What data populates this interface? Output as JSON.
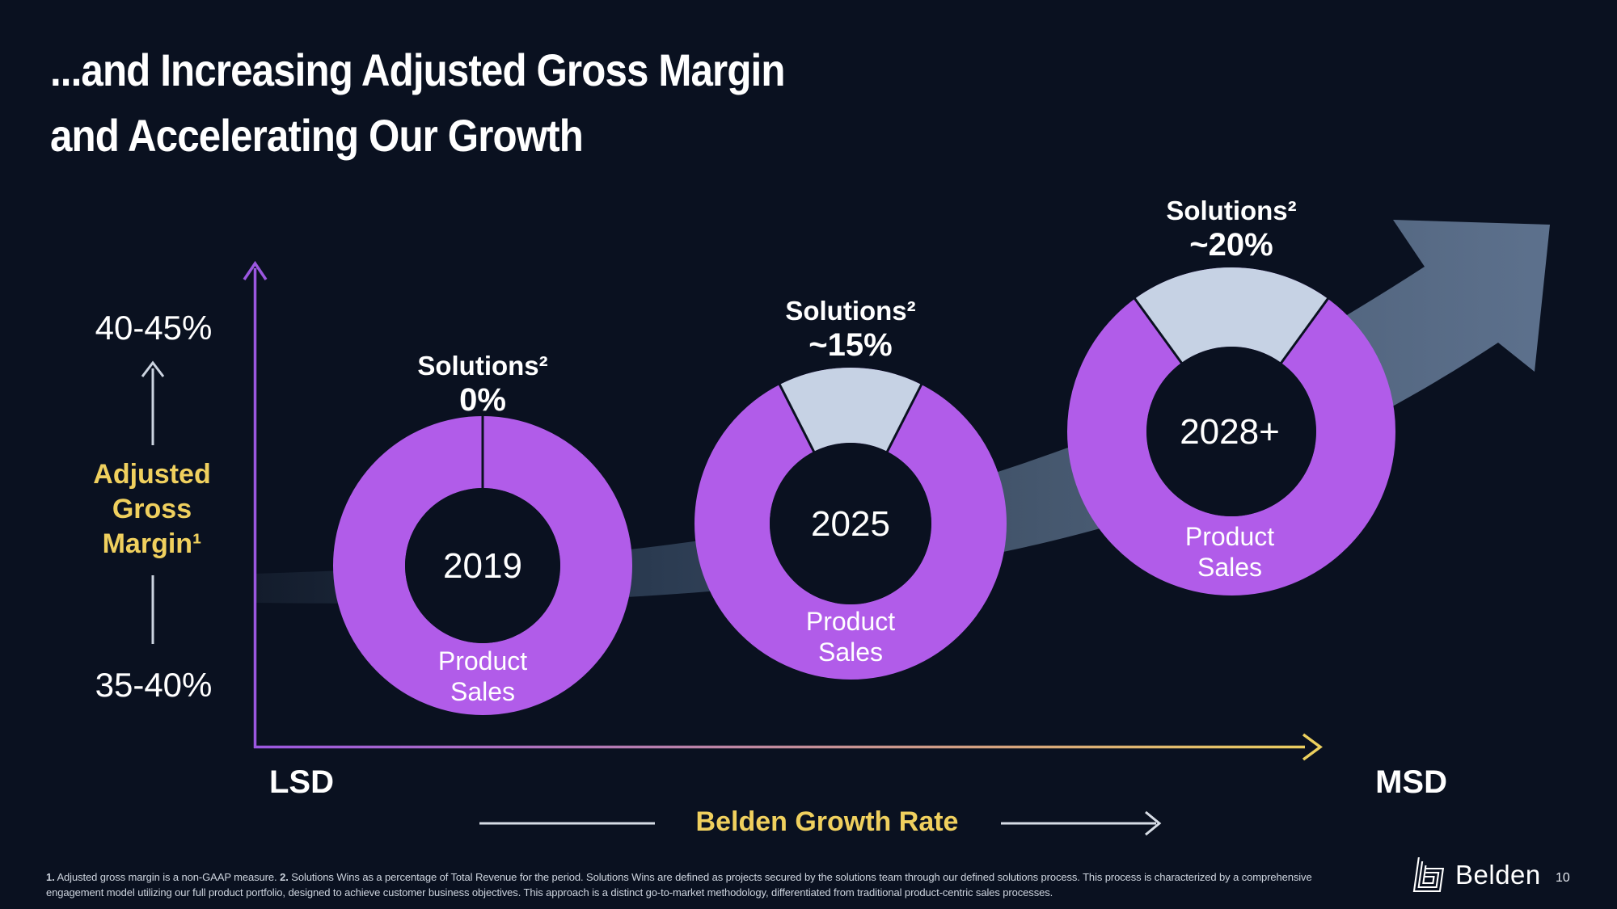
{
  "slide": {
    "title_line1": "...and Increasing Adjusted Gross Margin",
    "title_line2": "and Accelerating Our Growth"
  },
  "theme": {
    "background": "#0a1120",
    "product_purple": "#b15ce9",
    "solutions_blue": "#c6d2e4",
    "axis_purple": "#9b57e0",
    "gold": "#f0d05e",
    "swoosh": "#5d718d",
    "text": "#ffffff",
    "footnote_text": "#cdd4de"
  },
  "y_axis": {
    "high_label": "40-45%",
    "low_label": "35-40%",
    "title_lines": [
      "Adjusted",
      "Gross",
      "Margin¹"
    ]
  },
  "x_axis": {
    "left_label": "LSD",
    "right_label": "MSD",
    "title": "Belden Growth Rate"
  },
  "chart_data": {
    "type": "pie",
    "variant": "donut-progression-over-time",
    "x_axis": {
      "label": "Belden Growth Rate",
      "range": [
        "LSD",
        "MSD"
      ]
    },
    "y_axis": {
      "label": "Adjusted Gross Margin¹",
      "range": [
        "35-40%",
        "40-45%"
      ]
    },
    "legend_position": "none",
    "donuts": [
      {
        "year": "2019",
        "solutions_label": "Solutions²",
        "solutions_value": "0%",
        "solutions_pct": 0,
        "product_label": "Product Sales",
        "product_pct": 100
      },
      {
        "year": "2025",
        "solutions_label": "Solutions²",
        "solutions_value": "~15%",
        "solutions_pct": 15,
        "product_label": "Product Sales",
        "product_pct": 85
      },
      {
        "year": "2028+",
        "solutions_label": "Solutions²",
        "solutions_value": "~20%",
        "solutions_pct": 20,
        "product_label": "Product Sales",
        "product_pct": 80
      }
    ],
    "colors": {
      "product_sales": "#b15ce9",
      "solutions": "#c6d2e4"
    }
  },
  "footnotes": [
    {
      "marker": "1.",
      "text": "Adjusted gross margin is a non-GAAP measure."
    },
    {
      "marker": "2.",
      "text": "Solutions Wins as a percentage of Total Revenue for the period. Solutions Wins are defined as projects secured by the solutions team through our defined solutions process. This process is characterized by a comprehensive engagement model utilizing our full product portfolio, designed to achieve customer business objectives. This approach is a distinct go-to-market methodology, differentiated from traditional product-centric sales processes."
    }
  ],
  "footer": {
    "brand": "Belden",
    "page": "10"
  }
}
